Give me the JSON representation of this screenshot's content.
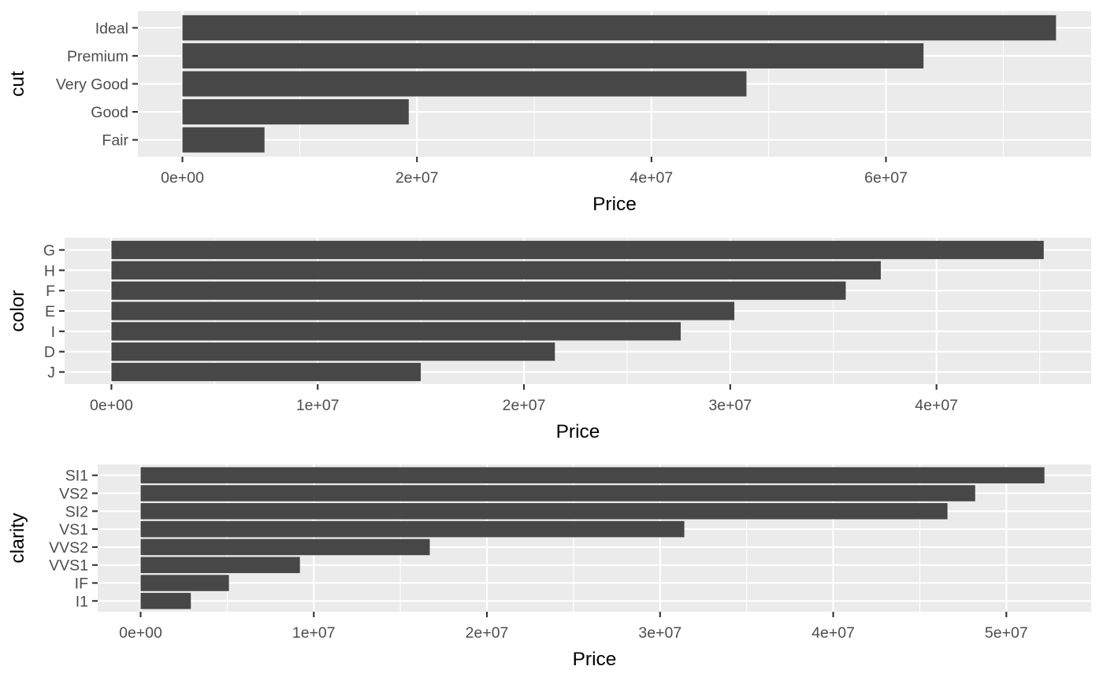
{
  "chart_data": [
    {
      "type": "bar",
      "orientation": "horizontal",
      "categories": [
        "Ideal",
        "Premium",
        "Very Good",
        "Good",
        "Fair"
      ],
      "values": [
        74500000,
        63200000,
        48100000,
        19300000,
        7000000
      ],
      "xlabel": "Price",
      "ylabel": "cut",
      "xlim": [
        -3800000,
        77500000
      ],
      "x_ticks": [
        0,
        20000000,
        40000000,
        60000000
      ],
      "x_tick_labels": [
        "0e+00",
        "2e+07",
        "4e+07",
        "6e+07"
      ],
      "grid": true,
      "legend": "none"
    },
    {
      "type": "bar",
      "orientation": "horizontal",
      "categories": [
        "G",
        "H",
        "F",
        "E",
        "I",
        "D",
        "J"
      ],
      "values": [
        45200000,
        37300000,
        35600000,
        30200000,
        27600000,
        21500000,
        15000000
      ],
      "xlabel": "Price",
      "ylabel": "color",
      "xlim": [
        -2270000,
        47500000
      ],
      "x_ticks": [
        0,
        10000000,
        20000000,
        30000000,
        40000000
      ],
      "x_tick_labels": [
        "0e+00",
        "1e+07",
        "2e+07",
        "3e+07",
        "4e+07"
      ],
      "grid": true,
      "legend": "none"
    },
    {
      "type": "bar",
      "orientation": "horizontal",
      "categories": [
        "SI1",
        "VS2",
        "SI2",
        "VS1",
        "VVS2",
        "VVS1",
        "IF",
        "I1"
      ],
      "values": [
        52200000,
        48200000,
        46600000,
        31400000,
        16700000,
        9200000,
        5100000,
        2900000
      ],
      "xlabel": "Price",
      "ylabel": "clarity",
      "xlim": [
        -2480000,
        54900000
      ],
      "x_ticks": [
        0,
        10000000,
        20000000,
        30000000,
        40000000,
        50000000
      ],
      "x_tick_labels": [
        "0e+00",
        "1e+07",
        "2e+07",
        "3e+07",
        "4e+07",
        "5e+07"
      ],
      "grid": true,
      "legend": "none"
    }
  ],
  "colors": {
    "panel_background": "#ebebeb",
    "bar_fill": "#474747",
    "grid": "#ffffff",
    "tick_label": "#4d4d4d"
  }
}
